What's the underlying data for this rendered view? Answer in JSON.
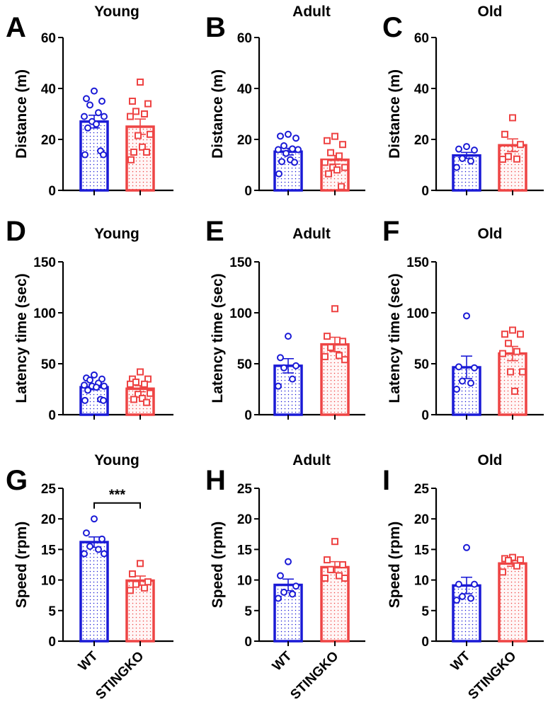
{
  "figure": {
    "groups": [
      "WT",
      "STINGKO"
    ],
    "colors": {
      "WT": "#1a1ad6",
      "STINGKO": "#ee4444"
    }
  },
  "chart_data": [
    {
      "id": "A",
      "type": "bar",
      "title": "Young",
      "ylabel": "Distance (m)",
      "ylim": [
        0,
        60
      ],
      "yticks": [
        0,
        20,
        40,
        60
      ],
      "categories": [
        "WT",
        "STINGKO"
      ],
      "show_categories": false,
      "series": [
        {
          "name": "WT",
          "mean": 27,
          "sem": 2.5,
          "points": [
            39,
            36,
            35,
            33.5,
            30.5,
            29,
            29,
            27,
            26,
            24.5,
            15.5,
            14,
            14
          ]
        },
        {
          "name": "STINGKO",
          "mean": 25,
          "sem": 3,
          "points": [
            42.5,
            35,
            34,
            31,
            30,
            29,
            22,
            21.5,
            17,
            15,
            15,
            12
          ]
        }
      ],
      "significance": null
    },
    {
      "id": "B",
      "type": "bar",
      "title": "Adult",
      "ylabel": "Distance (m)",
      "ylim": [
        0,
        60
      ],
      "yticks": [
        0,
        20,
        40,
        60
      ],
      "categories": [
        "WT",
        "STINGKO"
      ],
      "show_categories": false,
      "series": [
        {
          "name": "WT",
          "mean": 15.2,
          "sem": 1.3,
          "points": [
            22,
            21.3,
            20.5,
            17.5,
            16.3,
            16,
            16,
            14.5,
            12,
            11.3,
            11,
            6.5
          ]
        },
        {
          "name": "STINGKO",
          "mean": 12,
          "sem": 1.7,
          "points": [
            21.2,
            19.5,
            18,
            14.8,
            13.5,
            11,
            9,
            9,
            8,
            6.5,
            1.5
          ]
        }
      ],
      "significance": null
    },
    {
      "id": "C",
      "type": "bar",
      "title": "Old",
      "ylabel": "Distance (m)",
      "ylim": [
        0,
        60
      ],
      "yticks": [
        0,
        20,
        40,
        60
      ],
      "categories": [
        "WT",
        "STINGKO"
      ],
      "show_categories": false,
      "series": [
        {
          "name": "WT",
          "mean": 13.7,
          "sem": 1.2,
          "points": [
            17.2,
            16.2,
            15.8,
            12.5,
            11.5,
            9
          ]
        },
        {
          "name": "STINGKO",
          "mean": 17.7,
          "sem": 2.5,
          "points": [
            28.5,
            22,
            18,
            13.3,
            12.3,
            12.2
          ]
        }
      ],
      "significance": null
    },
    {
      "id": "D",
      "type": "bar",
      "title": "Young",
      "ylabel": "Latency time (sec)",
      "ylim": [
        0,
        150
      ],
      "yticks": [
        0,
        50,
        100,
        150
      ],
      "categories": [
        "WT",
        "STINGKO"
      ],
      "show_categories": false,
      "series": [
        {
          "name": "WT",
          "mean": 27,
          "sem": 2.5,
          "points": [
            39,
            36,
            35,
            34,
            31,
            29,
            28,
            28,
            27,
            24,
            15,
            14,
            14
          ]
        },
        {
          "name": "STINGKO",
          "mean": 25.5,
          "sem": 3,
          "points": [
            42,
            35,
            35,
            32,
            30,
            30,
            21,
            20,
            16,
            15,
            12
          ]
        }
      ],
      "significance": null
    },
    {
      "id": "E",
      "type": "bar",
      "title": "Adult",
      "ylabel": "Latency time (sec)",
      "ylim": [
        0,
        150
      ],
      "yticks": [
        0,
        50,
        100,
        150
      ],
      "categories": [
        "WT",
        "STINGKO"
      ],
      "show_categories": false,
      "series": [
        {
          "name": "WT",
          "mean": 48,
          "sem": 7,
          "points": [
            77,
            56,
            48,
            46,
            35,
            28
          ]
        },
        {
          "name": "STINGKO",
          "mean": 69,
          "sem": 7,
          "points": [
            104,
            77,
            72,
            66,
            58,
            57,
            54
          ]
        }
      ],
      "significance": null
    },
    {
      "id": "F",
      "type": "bar",
      "title": "Old",
      "ylabel": "Latency time (sec)",
      "ylim": [
        0,
        150
      ],
      "yticks": [
        0,
        50,
        100,
        150
      ],
      "categories": [
        "WT",
        "STINGKO"
      ],
      "show_categories": false,
      "series": [
        {
          "name": "WT",
          "mean": 46.5,
          "sem": 11,
          "points": [
            97,
            47,
            46,
            33,
            31,
            25
          ]
        },
        {
          "name": "STINGKO",
          "mean": 60,
          "sem": 7,
          "points": [
            83,
            79,
            79,
            70,
            62,
            60,
            42,
            42,
            23
          ]
        }
      ],
      "significance": null
    },
    {
      "id": "G",
      "type": "bar",
      "title": "Young",
      "ylabel": "Speed (rpm)",
      "ylim": [
        0,
        25
      ],
      "yticks": [
        0,
        5,
        10,
        15,
        20,
        25
      ],
      "categories": [
        "WT",
        "STINGKO"
      ],
      "show_categories": true,
      "series": [
        {
          "name": "WT",
          "mean": 16.2,
          "sem": 0.85,
          "points": [
            20,
            17.7,
            16.7,
            15.5,
            15,
            14.3,
            14.3
          ]
        },
        {
          "name": "STINGKO",
          "mean": 9.9,
          "sem": 0.75,
          "points": [
            12.7,
            11,
            9.7,
            9.3,
            8.7,
            8.3
          ]
        }
      ],
      "significance": {
        "label": "***",
        "between": [
          "WT",
          "STINGKO"
        ]
      }
    },
    {
      "id": "H",
      "type": "bar",
      "title": "Adult",
      "ylabel": "Speed (rpm)",
      "ylim": [
        0,
        25
      ],
      "yticks": [
        0,
        5,
        10,
        15,
        20,
        25
      ],
      "categories": [
        "WT",
        "STINGKO"
      ],
      "show_categories": true,
      "series": [
        {
          "name": "WT",
          "mean": 9.2,
          "sem": 0.95,
          "points": [
            13,
            10.7,
            9,
            8,
            7.7,
            7
          ]
        },
        {
          "name": "STINGKO",
          "mean": 12.1,
          "sem": 0.9,
          "points": [
            16.3,
            13.3,
            12.5,
            11.7,
            10.7,
            10.3,
            10.3
          ]
        }
      ],
      "significance": null
    },
    {
      "id": "I",
      "type": "bar",
      "title": "Old",
      "ylabel": "Speed (rpm)",
      "ylim": [
        0,
        25
      ],
      "yticks": [
        0,
        5,
        10,
        15,
        20,
        25
      ],
      "categories": [
        "WT",
        "STINGKO"
      ],
      "show_categories": true,
      "series": [
        {
          "name": "WT",
          "mean": 9.1,
          "sem": 1.35,
          "points": [
            15.3,
            9.3,
            9.3,
            7.3,
            7,
            6.7
          ]
        },
        {
          "name": "STINGKO",
          "mean": 12.7,
          "sem": 0.45,
          "points": [
            13.7,
            13.5,
            13.3,
            13.2,
            12.3,
            11.3
          ]
        }
      ],
      "significance": null
    }
  ]
}
